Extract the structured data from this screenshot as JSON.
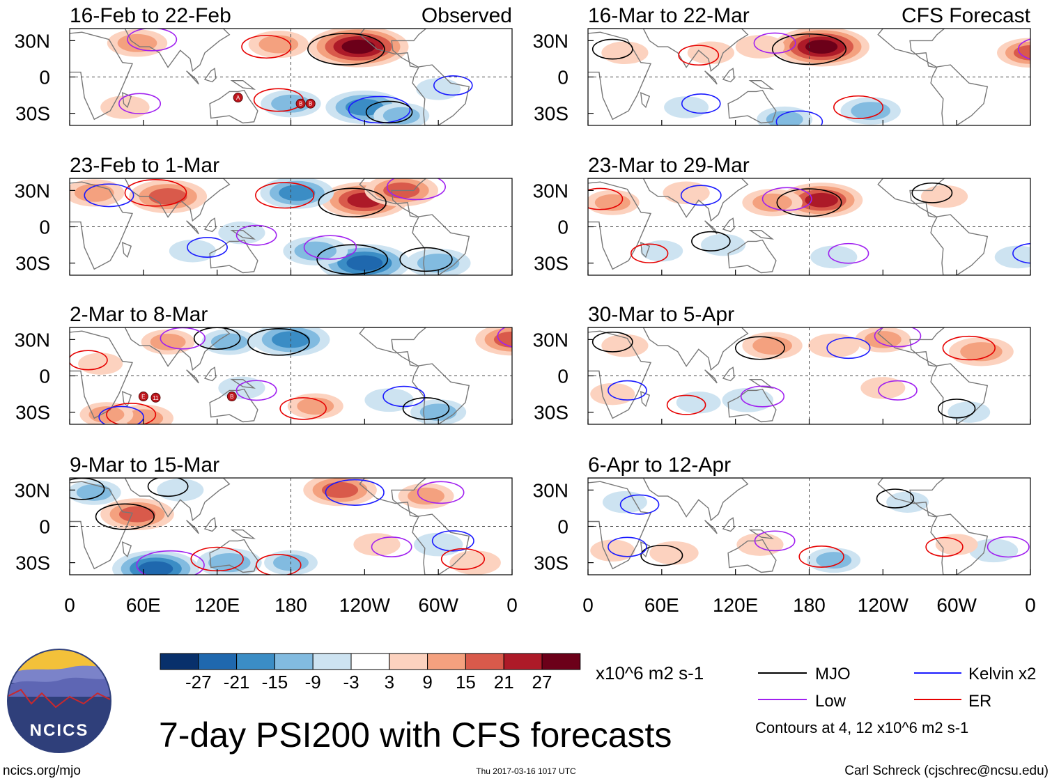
{
  "colors": {
    "shade": [
      "#08306b",
      "#1f68ae",
      "#3b8dc5",
      "#82bbe0",
      "#cde3f1",
      "#ffffff",
      "#fcd2bf",
      "#f4a17f",
      "#d95a4b",
      "#ad1a28",
      "#6c0019"
    ],
    "mjo": "#000000",
    "kelvin": "#1a1aff",
    "low": "#a020f0",
    "er": "#e60000",
    "land": "#777777",
    "logo_sky": "#f3c13a",
    "logo_dark": "#2f3f7a"
  },
  "chart_data": {
    "type": "heatmap",
    "variable": "7-day PSI200 with CFS forecasts",
    "x_tick_labels": [
      "0",
      "60E",
      "120E",
      "180",
      "120W",
      "60W",
      "0"
    ],
    "x_tick_lon": [
      0,
      60,
      120,
      180,
      240,
      300,
      360
    ],
    "y_tick_labels": [
      "30N",
      "0",
      "30S"
    ],
    "y_tick_lat": [
      30,
      0,
      -30
    ],
    "xlim": [
      0,
      360
    ],
    "ylim": [
      -40,
      40
    ],
    "panels": [
      {
        "period": "16-Feb to 22-Feb",
        "label": "Observed",
        "column": "observed",
        "features": [
          {
            "lon": 235,
            "lat": 25,
            "v": 30
          },
          {
            "lon": 55,
            "lat": 28,
            "v": 12
          },
          {
            "lon": 180,
            "lat": -22,
            "v": -12
          },
          {
            "lon": 240,
            "lat": -25,
            "v": -20
          },
          {
            "lon": 270,
            "lat": -32,
            "v": -10
          },
          {
            "lon": 45,
            "lat": -25,
            "v": 7
          },
          {
            "lon": 170,
            "lat": 27,
            "v": 12
          },
          {
            "lon": 300,
            "lat": -10,
            "v": -5
          }
        ],
        "cyclones": [
          {
            "lon": 137,
            "lat": -17,
            "code": "A"
          },
          {
            "lon": 188,
            "lat": -22,
            "code": "B"
          },
          {
            "lon": 196,
            "lat": -22,
            "code": "B"
          }
        ]
      },
      {
        "period": "16-Mar to 22-Mar",
        "label": "CFS Forecast",
        "column": "forecast",
        "features": [
          {
            "lon": 190,
            "lat": 25,
            "v": 28
          },
          {
            "lon": 360,
            "lat": 20,
            "v": 15
          },
          {
            "lon": 230,
            "lat": -28,
            "v": -12
          },
          {
            "lon": 160,
            "lat": -35,
            "v": -10
          },
          {
            "lon": 30,
            "lat": 20,
            "v": 6
          },
          {
            "lon": 140,
            "lat": 25,
            "v": 7
          },
          {
            "lon": 100,
            "lat": 20,
            "v": 6
          },
          {
            "lon": 80,
            "lat": -25,
            "v": -5
          }
        ],
        "cyclones": []
      },
      {
        "period": "23-Feb to 1-Mar",
        "label": "",
        "column": "observed",
        "features": [
          {
            "lon": 240,
            "lat": 22,
            "v": 24
          },
          {
            "lon": 270,
            "lat": 30,
            "v": 18
          },
          {
            "lon": 80,
            "lat": 25,
            "v": 20
          },
          {
            "lon": 20,
            "lat": 28,
            "v": 12
          },
          {
            "lon": 240,
            "lat": -30,
            "v": -26
          },
          {
            "lon": 200,
            "lat": -20,
            "v": -14
          },
          {
            "lon": 185,
            "lat": 28,
            "v": -18
          },
          {
            "lon": 100,
            "lat": -20,
            "v": -6
          },
          {
            "lon": 300,
            "lat": -30,
            "v": -14
          },
          {
            "lon": 140,
            "lat": -5,
            "v": -6
          }
        ],
        "cyclones": []
      },
      {
        "period": "23-Mar to 29-Mar",
        "label": "",
        "column": "forecast",
        "features": [
          {
            "lon": 190,
            "lat": 22,
            "v": 22
          },
          {
            "lon": 150,
            "lat": 20,
            "v": 12
          },
          {
            "lon": 20,
            "lat": 20,
            "v": 9
          },
          {
            "lon": 80,
            "lat": 28,
            "v": 6
          },
          {
            "lon": 290,
            "lat": 25,
            "v": 6
          },
          {
            "lon": 200,
            "lat": -25,
            "v": -6
          },
          {
            "lon": 60,
            "lat": -20,
            "v": -4
          },
          {
            "lon": 350,
            "lat": -25,
            "v": -6
          },
          {
            "lon": 110,
            "lat": -15,
            "v": -5
          }
        ],
        "cyclones": []
      },
      {
        "period": "2-Mar to 8-Mar",
        "label": "",
        "column": "observed",
        "features": [
          {
            "lon": 180,
            "lat": 30,
            "v": -20
          },
          {
            "lon": 360,
            "lat": 30,
            "v": 18
          },
          {
            "lon": 60,
            "lat": -35,
            "v": 12
          },
          {
            "lon": 30,
            "lat": -32,
            "v": 9
          },
          {
            "lon": 130,
            "lat": 28,
            "v": -10
          },
          {
            "lon": 80,
            "lat": 28,
            "v": 9
          },
          {
            "lon": 200,
            "lat": -25,
            "v": 10
          },
          {
            "lon": 260,
            "lat": -20,
            "v": -7
          },
          {
            "lon": 300,
            "lat": -30,
            "v": -10
          },
          {
            "lon": 140,
            "lat": -10,
            "v": -6
          },
          {
            "lon": 25,
            "lat": 10,
            "v": 5
          }
        ],
        "cyclones": [
          {
            "lon": 60,
            "lat": -17,
            "code": "E"
          },
          {
            "lon": 70,
            "lat": -18,
            "code": "11"
          },
          {
            "lon": 132,
            "lat": -17,
            "code": "B"
          }
        ]
      },
      {
        "period": "30-Mar to 5-Apr",
        "label": "",
        "column": "forecast",
        "features": [
          {
            "lon": 150,
            "lat": 25,
            "v": 12
          },
          {
            "lon": 240,
            "lat": 30,
            "v": 10
          },
          {
            "lon": 320,
            "lat": 20,
            "v": 14
          },
          {
            "lon": 200,
            "lat": 25,
            "v": 8
          },
          {
            "lon": 30,
            "lat": 25,
            "v": 6
          },
          {
            "lon": 130,
            "lat": -20,
            "v": -8
          },
          {
            "lon": 90,
            "lat": -22,
            "v": -5
          },
          {
            "lon": 20,
            "lat": -15,
            "v": 5
          },
          {
            "lon": 310,
            "lat": -30,
            "v": -4
          },
          {
            "lon": 240,
            "lat": -10,
            "v": 5
          }
        ],
        "cyclones": []
      },
      {
        "period": "9-Mar to 15-Mar",
        "label": "",
        "column": "observed",
        "features": [
          {
            "lon": 55,
            "lat": 10,
            "v": 18
          },
          {
            "lon": 70,
            "lat": -35,
            "v": -24
          },
          {
            "lon": 130,
            "lat": -30,
            "v": -14
          },
          {
            "lon": 220,
            "lat": 30,
            "v": 18
          },
          {
            "lon": 20,
            "lat": 28,
            "v": -9
          },
          {
            "lon": 290,
            "lat": 25,
            "v": 10
          },
          {
            "lon": 180,
            "lat": -30,
            "v": -9
          },
          {
            "lon": 300,
            "lat": -15,
            "v": -7
          },
          {
            "lon": 90,
            "lat": 30,
            "v": -6
          },
          {
            "lon": 250,
            "lat": -15,
            "v": 6
          },
          {
            "lon": 330,
            "lat": -30,
            "v": 8
          }
        ],
        "cyclones": []
      },
      {
        "period": "6-Apr to 12-Apr",
        "label": "",
        "column": "forecast",
        "features": [
          {
            "lon": 70,
            "lat": -22,
            "v": 7
          },
          {
            "lon": 140,
            "lat": -15,
            "v": 6
          },
          {
            "lon": 200,
            "lat": -28,
            "v": -9
          },
          {
            "lon": 30,
            "lat": 20,
            "v": -5
          },
          {
            "lon": 260,
            "lat": 20,
            "v": -4
          },
          {
            "lon": 330,
            "lat": -20,
            "v": -7
          },
          {
            "lon": 300,
            "lat": -15,
            "v": 4
          },
          {
            "lon": 20,
            "lat": -20,
            "v": 5
          }
        ],
        "cyclones": []
      }
    ],
    "colorbar": {
      "tick_labels": [
        "-27",
        "-21",
        "-15",
        "-9",
        "-3",
        "3",
        "9",
        "15",
        "21",
        "27"
      ],
      "units": "x10^6 m2 s-1"
    },
    "legend": {
      "entries": [
        {
          "name": "MJO",
          "color_key": "mjo"
        },
        {
          "name": "Kelvin x2",
          "color_key": "kelvin"
        },
        {
          "name": "Low",
          "color_key": "low"
        },
        {
          "name": "ER",
          "color_key": "er"
        }
      ],
      "note": "Contours at 4, 12 x10^6 m2 s-1"
    }
  },
  "footer": {
    "title": "7-day PSI200 with CFS forecasts",
    "logo_text": "NCICS",
    "url": "ncics.org/mjo",
    "timestamp": "Thu 2017-03-16 1017 UTC",
    "author": "Carl Schreck (cjschrec@ncsu.edu)"
  }
}
